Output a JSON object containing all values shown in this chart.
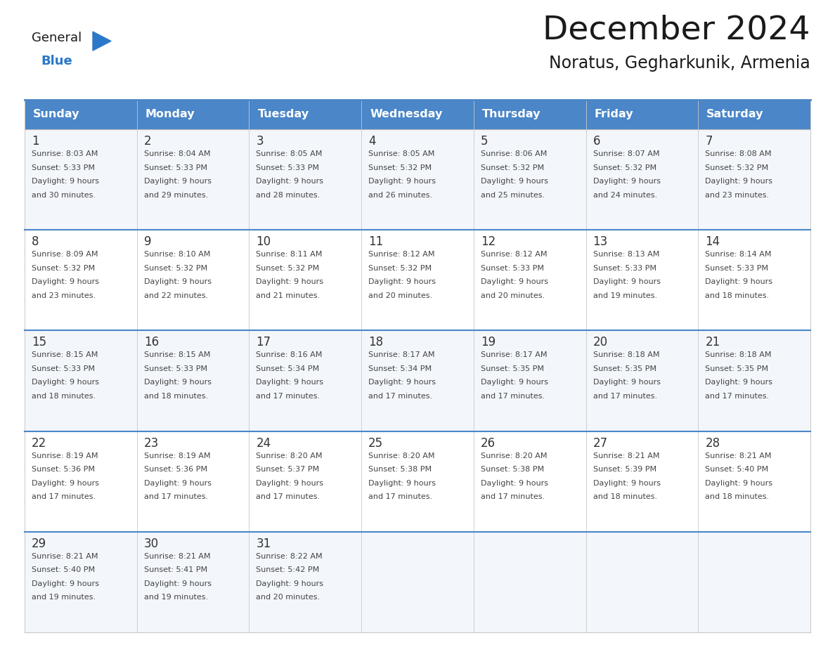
{
  "title": "December 2024",
  "subtitle": "Noratus, Gegharkunik, Armenia",
  "days_of_week": [
    "Sunday",
    "Monday",
    "Tuesday",
    "Wednesday",
    "Thursday",
    "Friday",
    "Saturday"
  ],
  "header_bg": "#4a86c8",
  "header_text": "#ffffff",
  "cell_bg_white": "#ffffff",
  "cell_bg_gray": "#e8eef4",
  "day_num_color": "#333333",
  "cell_text_color": "#444444",
  "border_color": "#4a86c8",
  "row_border_color": "#4a86c8",
  "title_color": "#1a1a1a",
  "subtitle_color": "#1a1a1a",
  "logo_general_color": "#1a1a1a",
  "logo_blue_color": "#2b78c8",
  "weeks": [
    [
      {
        "day": 1,
        "sunrise": "8:03 AM",
        "sunset": "5:33 PM",
        "daylight": "9 hours\nand 30 minutes."
      },
      {
        "day": 2,
        "sunrise": "8:04 AM",
        "sunset": "5:33 PM",
        "daylight": "9 hours\nand 29 minutes."
      },
      {
        "day": 3,
        "sunrise": "8:05 AM",
        "sunset": "5:33 PM",
        "daylight": "9 hours\nand 28 minutes."
      },
      {
        "day": 4,
        "sunrise": "8:05 AM",
        "sunset": "5:32 PM",
        "daylight": "9 hours\nand 26 minutes."
      },
      {
        "day": 5,
        "sunrise": "8:06 AM",
        "sunset": "5:32 PM",
        "daylight": "9 hours\nand 25 minutes."
      },
      {
        "day": 6,
        "sunrise": "8:07 AM",
        "sunset": "5:32 PM",
        "daylight": "9 hours\nand 24 minutes."
      },
      {
        "day": 7,
        "sunrise": "8:08 AM",
        "sunset": "5:32 PM",
        "daylight": "9 hours\nand 23 minutes."
      }
    ],
    [
      {
        "day": 8,
        "sunrise": "8:09 AM",
        "sunset": "5:32 PM",
        "daylight": "9 hours\nand 23 minutes."
      },
      {
        "day": 9,
        "sunrise": "8:10 AM",
        "sunset": "5:32 PM",
        "daylight": "9 hours\nand 22 minutes."
      },
      {
        "day": 10,
        "sunrise": "8:11 AM",
        "sunset": "5:32 PM",
        "daylight": "9 hours\nand 21 minutes."
      },
      {
        "day": 11,
        "sunrise": "8:12 AM",
        "sunset": "5:32 PM",
        "daylight": "9 hours\nand 20 minutes."
      },
      {
        "day": 12,
        "sunrise": "8:12 AM",
        "sunset": "5:33 PM",
        "daylight": "9 hours\nand 20 minutes."
      },
      {
        "day": 13,
        "sunrise": "8:13 AM",
        "sunset": "5:33 PM",
        "daylight": "9 hours\nand 19 minutes."
      },
      {
        "day": 14,
        "sunrise": "8:14 AM",
        "sunset": "5:33 PM",
        "daylight": "9 hours\nand 18 minutes."
      }
    ],
    [
      {
        "day": 15,
        "sunrise": "8:15 AM",
        "sunset": "5:33 PM",
        "daylight": "9 hours\nand 18 minutes."
      },
      {
        "day": 16,
        "sunrise": "8:15 AM",
        "sunset": "5:33 PM",
        "daylight": "9 hours\nand 18 minutes."
      },
      {
        "day": 17,
        "sunrise": "8:16 AM",
        "sunset": "5:34 PM",
        "daylight": "9 hours\nand 17 minutes."
      },
      {
        "day": 18,
        "sunrise": "8:17 AM",
        "sunset": "5:34 PM",
        "daylight": "9 hours\nand 17 minutes."
      },
      {
        "day": 19,
        "sunrise": "8:17 AM",
        "sunset": "5:35 PM",
        "daylight": "9 hours\nand 17 minutes."
      },
      {
        "day": 20,
        "sunrise": "8:18 AM",
        "sunset": "5:35 PM",
        "daylight": "9 hours\nand 17 minutes."
      },
      {
        "day": 21,
        "sunrise": "8:18 AM",
        "sunset": "5:35 PM",
        "daylight": "9 hours\nand 17 minutes."
      }
    ],
    [
      {
        "day": 22,
        "sunrise": "8:19 AM",
        "sunset": "5:36 PM",
        "daylight": "9 hours\nand 17 minutes."
      },
      {
        "day": 23,
        "sunrise": "8:19 AM",
        "sunset": "5:36 PM",
        "daylight": "9 hours\nand 17 minutes."
      },
      {
        "day": 24,
        "sunrise": "8:20 AM",
        "sunset": "5:37 PM",
        "daylight": "9 hours\nand 17 minutes."
      },
      {
        "day": 25,
        "sunrise": "8:20 AM",
        "sunset": "5:38 PM",
        "daylight": "9 hours\nand 17 minutes."
      },
      {
        "day": 26,
        "sunrise": "8:20 AM",
        "sunset": "5:38 PM",
        "daylight": "9 hours\nand 17 minutes."
      },
      {
        "day": 27,
        "sunrise": "8:21 AM",
        "sunset": "5:39 PM",
        "daylight": "9 hours\nand 18 minutes."
      },
      {
        "day": 28,
        "sunrise": "8:21 AM",
        "sunset": "5:40 PM",
        "daylight": "9 hours\nand 18 minutes."
      }
    ],
    [
      {
        "day": 29,
        "sunrise": "8:21 AM",
        "sunset": "5:40 PM",
        "daylight": "9 hours\nand 19 minutes."
      },
      {
        "day": 30,
        "sunrise": "8:21 AM",
        "sunset": "5:41 PM",
        "daylight": "9 hours\nand 19 minutes."
      },
      {
        "day": 31,
        "sunrise": "8:22 AM",
        "sunset": "5:42 PM",
        "daylight": "9 hours\nand 20 minutes."
      },
      null,
      null,
      null,
      null
    ]
  ]
}
